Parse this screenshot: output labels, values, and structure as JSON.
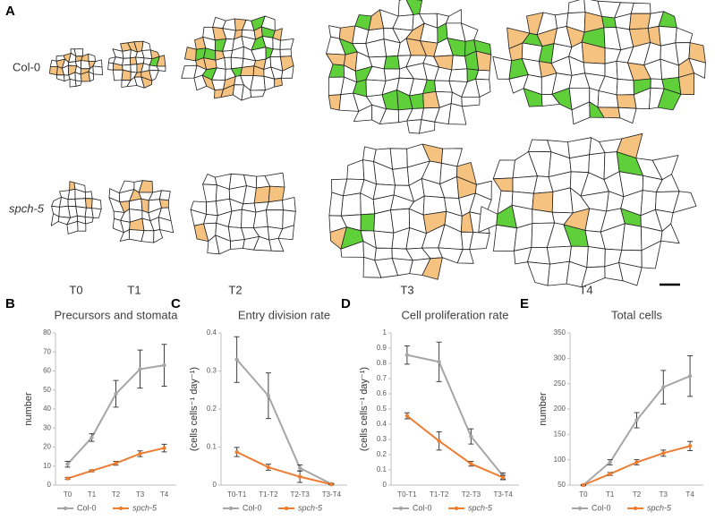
{
  "panel_a": {
    "letter": "A",
    "rows": [
      "Col-0",
      "spch-5"
    ],
    "timepoints": [
      "T0",
      "T1",
      "T2",
      "T3",
      "T4"
    ]
  },
  "chart_data": [
    {
      "type": "line",
      "panel": "B",
      "title": "Precursors and stomata",
      "ylabel": "number",
      "categories": [
        "T0",
        "T1",
        "T2",
        "T3",
        "T4"
      ],
      "ylim": [
        0,
        80
      ],
      "yticks": [
        0,
        10,
        20,
        30,
        40,
        50,
        60,
        70,
        80
      ],
      "series": [
        {
          "name": "Col-0",
          "color": "#a6a6a6",
          "values": [
            11,
            25,
            48,
            61,
            63
          ],
          "errors": [
            1.5,
            2,
            7,
            10,
            11
          ]
        },
        {
          "name": "spch-5",
          "color": "#ed7d31",
          "values": [
            3.5,
            7.5,
            11.5,
            16.5,
            19.5
          ],
          "errors": [
            0.5,
            0.5,
            1,
            1.5,
            2
          ]
        }
      ]
    },
    {
      "type": "line",
      "panel": "C",
      "title": "Entry division rate",
      "ylabel": "(cells cells⁻¹ day⁻¹)",
      "categories": [
        "T0-T1",
        "T1-T2",
        "T2-T3",
        "T3-T4"
      ],
      "ylim": [
        0,
        0.4
      ],
      "yticks": [
        0,
        0.1,
        0.2,
        0.3,
        0.4
      ],
      "series": [
        {
          "name": "Col-0",
          "color": "#a6a6a6",
          "values": [
            0.33,
            0.235,
            0.045,
            0.003
          ],
          "errors": [
            0.06,
            0.06,
            0.008,
            0.002
          ]
        },
        {
          "name": "spch-5",
          "color": "#ed7d31",
          "values": [
            0.087,
            0.047,
            0.022,
            0.002
          ],
          "errors": [
            0.012,
            0.008,
            0.015,
            0.001
          ]
        }
      ]
    },
    {
      "type": "line",
      "panel": "D",
      "title": "Cell proliferation rate",
      "ylabel": "(cells cells⁻¹ day⁻¹)",
      "categories": [
        "T0-T1",
        "T1-T2",
        "T2-T3",
        "T3-T4"
      ],
      "ylim": [
        0,
        1
      ],
      "yticks": [
        0,
        0.1,
        0.2,
        0.3,
        0.4,
        0.5,
        0.6,
        0.7,
        0.8,
        0.9,
        1
      ],
      "series": [
        {
          "name": "Col-0",
          "color": "#a6a6a6",
          "values": [
            0.855,
            0.81,
            0.32,
            0.06
          ],
          "errors": [
            0.06,
            0.13,
            0.05,
            0.02
          ]
        },
        {
          "name": "spch-5",
          "color": "#ed7d31",
          "values": [
            0.455,
            0.29,
            0.14,
            0.05
          ],
          "errors": [
            0.02,
            0.06,
            0.015,
            0.015
          ]
        }
      ]
    },
    {
      "type": "line",
      "panel": "E",
      "title": "Total cells",
      "ylabel": "number",
      "categories": [
        "T0",
        "T1",
        "T2",
        "T3",
        "T4"
      ],
      "ylim": [
        50,
        350
      ],
      "yticks": [
        50,
        100,
        150,
        200,
        250,
        300,
        350
      ],
      "series": [
        {
          "name": "Col-0",
          "color": "#a6a6a6",
          "values": [
            50,
            95,
            178,
            243,
            265
          ],
          "errors": [
            1,
            5,
            15,
            33,
            40
          ]
        },
        {
          "name": "spch-5",
          "color": "#ed7d31",
          "values": [
            50,
            72,
            95,
            113,
            127
          ],
          "errors": [
            1,
            3,
            5,
            6,
            9
          ]
        }
      ]
    }
  ]
}
